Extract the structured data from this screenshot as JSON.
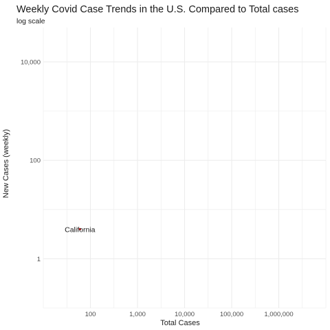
{
  "chart_data": {
    "type": "scatter",
    "title": "Weekly Covid Case Trends in the U.S. Compared to Total cases",
    "subtitle": "log scale",
    "xlabel": "Total Cases",
    "ylabel": "New Cases (weekly)",
    "x_scale": "log10",
    "y_scale": "log10",
    "xlim": [
      10,
      10000000
    ],
    "ylim": [
      0.1,
      50000
    ],
    "x_ticks": [
      {
        "value": 100,
        "label": "100"
      },
      {
        "value": 1000,
        "label": "1,000"
      },
      {
        "value": 10000,
        "label": "10,000"
      },
      {
        "value": 100000,
        "label": "100,000"
      },
      {
        "value": 1000000,
        "label": "1,000,000"
      }
    ],
    "y_ticks": [
      {
        "value": 1,
        "label": "1"
      },
      {
        "value": 100,
        "label": "100"
      },
      {
        "value": 10000,
        "label": "10,000"
      }
    ],
    "grid": true,
    "gridline_color": "#ebebeb",
    "point_color": "#cc0000",
    "points": [
      {
        "label": "California",
        "x": 60,
        "y": 4
      }
    ]
  }
}
